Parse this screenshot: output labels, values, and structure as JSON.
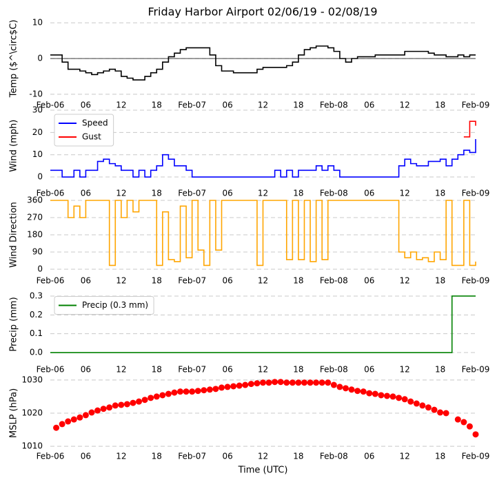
{
  "chart_data": [
    {
      "type": "line",
      "title": "Friday Harbor Airport 02/06/19 - 02/08/19",
      "y_label": "Temp ($^\\circ$C)",
      "step": true,
      "hline": 0,
      "xlim": [
        0,
        72
      ],
      "ylim": [
        -11,
        11
      ],
      "yticks": [
        -10,
        0,
        10
      ],
      "grid": true,
      "xticks": [
        {
          "value": 0,
          "label": "Feb-06"
        },
        {
          "value": 6,
          "label": "06"
        },
        {
          "value": 12,
          "label": "12"
        },
        {
          "value": 18,
          "label": "18"
        },
        {
          "value": 24,
          "label": "Feb-07"
        },
        {
          "value": 30,
          "label": "06"
        },
        {
          "value": 36,
          "label": "12"
        },
        {
          "value": 42,
          "label": "18"
        },
        {
          "value": 48,
          "label": "Feb-08"
        },
        {
          "value": 54,
          "label": "06"
        },
        {
          "value": 60,
          "label": "12"
        },
        {
          "value": 66,
          "label": "18"
        },
        {
          "value": 72,
          "label": "Feb-09"
        }
      ],
      "x": [
        0,
        1,
        2,
        3,
        4,
        5,
        6,
        7,
        8,
        9,
        10,
        11,
        12,
        13,
        14,
        15,
        16,
        17,
        18,
        19,
        20,
        21,
        22,
        23,
        24,
        25,
        26,
        27,
        28,
        29,
        30,
        31,
        32,
        33,
        34,
        35,
        36,
        37,
        38,
        39,
        40,
        41,
        42,
        43,
        44,
        45,
        46,
        47,
        48,
        49,
        50,
        51,
        52,
        53,
        54,
        55,
        56,
        57,
        58,
        59,
        60,
        61,
        62,
        63,
        64,
        65,
        66,
        67,
        68,
        69,
        70,
        71,
        72
      ],
      "series": [
        {
          "color": "#000000",
          "values": [
            1,
            1,
            -1,
            -3,
            -3,
            -3.5,
            -4,
            -4.5,
            -4,
            -3.5,
            -3,
            -3.5,
            -5,
            -5.5,
            -6,
            -6,
            -5,
            -4,
            -3,
            -1,
            0.5,
            1.5,
            2.5,
            3,
            3,
            3,
            3,
            1,
            -2,
            -3.5,
            -3.5,
            -4,
            -4,
            -4,
            -4,
            -3,
            -2.5,
            -2.5,
            -2.5,
            -2.5,
            -2,
            -1,
            1,
            2.5,
            3,
            3.5,
            3.5,
            3,
            2,
            0,
            -1,
            0,
            0.5,
            0.5,
            0.5,
            1,
            1,
            1,
            1,
            1,
            2,
            2,
            2,
            2,
            1.5,
            1,
            1,
            0.5,
            0.5,
            1,
            0.5,
            1,
            1
          ]
        }
      ]
    },
    {
      "type": "line",
      "y_label": "Wind (mph)",
      "step": true,
      "legend": "upper-left",
      "xlim": [
        0,
        72
      ],
      "ylim": [
        -2,
        30
      ],
      "yticks": [
        0,
        10,
        20,
        30
      ],
      "grid": true,
      "xticks": [
        {
          "value": 0,
          "label": "Feb-06"
        },
        {
          "value": 6,
          "label": "06"
        },
        {
          "value": 12,
          "label": "12"
        },
        {
          "value": 18,
          "label": "18"
        },
        {
          "value": 24,
          "label": "Feb-07"
        },
        {
          "value": 30,
          "label": "06"
        },
        {
          "value": 36,
          "label": "12"
        },
        {
          "value": 42,
          "label": "18"
        },
        {
          "value": 48,
          "label": "Feb-08"
        },
        {
          "value": 54,
          "label": "06"
        },
        {
          "value": 60,
          "label": "12"
        },
        {
          "value": 66,
          "label": "18"
        },
        {
          "value": 72,
          "label": "Feb-09"
        }
      ],
      "x": [
        0,
        1,
        2,
        3,
        4,
        5,
        6,
        7,
        8,
        9,
        10,
        11,
        12,
        13,
        14,
        15,
        16,
        17,
        18,
        19,
        20,
        21,
        22,
        23,
        24,
        25,
        26,
        27,
        28,
        29,
        30,
        31,
        32,
        33,
        34,
        35,
        36,
        37,
        38,
        39,
        40,
        41,
        42,
        43,
        44,
        45,
        46,
        47,
        48,
        49,
        50,
        51,
        52,
        53,
        54,
        55,
        56,
        57,
        58,
        59,
        60,
        61,
        62,
        63,
        64,
        65,
        66,
        67,
        68,
        69,
        70,
        71,
        72
      ],
      "series": [
        {
          "name": "Speed",
          "color": "#0000ff",
          "values": [
            3,
            3,
            0,
            0,
            3,
            0,
            3,
            3,
            7,
            8,
            6,
            5,
            3,
            3,
            0,
            3,
            0,
            3,
            5,
            10,
            8,
            5,
            5,
            3,
            0,
            0,
            0,
            0,
            0,
            0,
            0,
            0,
            0,
            0,
            0,
            0,
            0,
            0,
            3,
            0,
            3,
            0,
            3,
            3,
            3,
            5,
            3,
            5,
            3,
            0,
            0,
            0,
            0,
            0,
            0,
            0,
            0,
            0,
            0,
            5,
            8,
            6,
            5,
            5,
            7,
            7,
            8,
            5,
            8,
            10,
            12,
            11,
            17
          ]
        },
        {
          "name": "Gust",
          "color": "#ff0000",
          "values": [
            null,
            null,
            null,
            null,
            null,
            null,
            null,
            null,
            null,
            null,
            null,
            null,
            null,
            null,
            null,
            null,
            null,
            null,
            null,
            null,
            null,
            null,
            null,
            null,
            null,
            null,
            null,
            null,
            null,
            null,
            null,
            null,
            null,
            null,
            null,
            null,
            null,
            null,
            null,
            null,
            null,
            null,
            null,
            null,
            null,
            null,
            null,
            null,
            null,
            null,
            null,
            null,
            null,
            null,
            null,
            null,
            null,
            null,
            null,
            null,
            null,
            null,
            null,
            null,
            null,
            null,
            null,
            null,
            null,
            null,
            18,
            25,
            23
          ]
        }
      ]
    },
    {
      "type": "line",
      "y_label": "Wind Direction",
      "step": true,
      "xlim": [
        0,
        72
      ],
      "ylim": [
        0,
        360
      ],
      "yticks": [
        0,
        90,
        180,
        270,
        360
      ],
      "grid": true,
      "xticks": [
        {
          "value": 0,
          "label": "Feb-06"
        },
        {
          "value": 6,
          "label": "06"
        },
        {
          "value": 12,
          "label": "12"
        },
        {
          "value": 18,
          "label": "18"
        },
        {
          "value": 24,
          "label": "Feb-07"
        },
        {
          "value": 30,
          "label": "06"
        },
        {
          "value": 36,
          "label": "12"
        },
        {
          "value": 42,
          "label": "18"
        },
        {
          "value": 48,
          "label": "Feb-08"
        },
        {
          "value": 54,
          "label": "06"
        },
        {
          "value": 60,
          "label": "12"
        },
        {
          "value": 66,
          "label": "18"
        },
        {
          "value": 72,
          "label": "Feb-09"
        }
      ],
      "x": [
        0,
        1,
        2,
        3,
        4,
        5,
        6,
        7,
        8,
        9,
        10,
        11,
        12,
        13,
        14,
        15,
        16,
        17,
        18,
        19,
        20,
        21,
        22,
        23,
        24,
        25,
        26,
        27,
        28,
        29,
        30,
        31,
        32,
        33,
        34,
        35,
        36,
        37,
        38,
        39,
        40,
        41,
        42,
        43,
        44,
        45,
        46,
        47,
        48,
        49,
        50,
        51,
        52,
        53,
        54,
        55,
        56,
        57,
        58,
        59,
        60,
        61,
        62,
        63,
        64,
        65,
        66,
        67,
        68,
        69,
        70,
        71,
        72
      ],
      "series": [
        {
          "color": "#ffa500",
          "values": [
            360,
            360,
            360,
            270,
            330,
            270,
            360,
            360,
            360,
            360,
            20,
            360,
            270,
            360,
            300,
            360,
            360,
            360,
            20,
            300,
            50,
            40,
            330,
            60,
            360,
            100,
            20,
            360,
            100,
            360,
            360,
            360,
            360,
            360,
            360,
            20,
            360,
            360,
            360,
            360,
            50,
            360,
            50,
            360,
            40,
            360,
            50,
            360,
            360,
            360,
            360,
            360,
            360,
            360,
            360,
            360,
            360,
            360,
            360,
            90,
            60,
            90,
            50,
            60,
            40,
            90,
            50,
            360,
            20,
            20,
            360,
            20,
            40
          ]
        }
      ]
    },
    {
      "type": "line",
      "y_label": "Precip (mm)",
      "step": true,
      "legend": "upper-left",
      "xlim": [
        0,
        72
      ],
      "ylim": [
        -0.02,
        0.32
      ],
      "yticks": [
        {
          "value": 0,
          "label": "0.0"
        },
        0.1,
        0.2,
        0.3
      ],
      "grid": true,
      "xticks": [
        {
          "value": 0,
          "label": "Feb-06"
        },
        {
          "value": 6,
          "label": "06"
        },
        {
          "value": 12,
          "label": "12"
        },
        {
          "value": 18,
          "label": "18"
        },
        {
          "value": 24,
          "label": "Feb-07"
        },
        {
          "value": 30,
          "label": "06"
        },
        {
          "value": 36,
          "label": "12"
        },
        {
          "value": 42,
          "label": "18"
        },
        {
          "value": 48,
          "label": "Feb-08"
        },
        {
          "value": 54,
          "label": "06"
        },
        {
          "value": 60,
          "label": "12"
        },
        {
          "value": 66,
          "label": "18"
        },
        {
          "value": 72,
          "label": "Feb-09"
        }
      ],
      "x": [
        0,
        1,
        2,
        3,
        4,
        5,
        6,
        7,
        8,
        9,
        10,
        11,
        12,
        13,
        14,
        15,
        16,
        17,
        18,
        19,
        20,
        21,
        22,
        23,
        24,
        25,
        26,
        27,
        28,
        29,
        30,
        31,
        32,
        33,
        34,
        35,
        36,
        37,
        38,
        39,
        40,
        41,
        42,
        43,
        44,
        45,
        46,
        47,
        48,
        49,
        50,
        51,
        52,
        53,
        54,
        55,
        56,
        57,
        58,
        59,
        60,
        61,
        62,
        63,
        64,
        65,
        66,
        67,
        68,
        69,
        70,
        71,
        72
      ],
      "series": [
        {
          "name": "Precip (0.3 mm)",
          "color": "#008000",
          "values": [
            0,
            0,
            0,
            0,
            0,
            0,
            0,
            0,
            0,
            0,
            0,
            0,
            0,
            0,
            0,
            0,
            0,
            0,
            0,
            0,
            0,
            0,
            0,
            0,
            0,
            0,
            0,
            0,
            0,
            0,
            0,
            0,
            0,
            0,
            0,
            0,
            0,
            0,
            0,
            0,
            0,
            0,
            0,
            0,
            0,
            0,
            0,
            0,
            0,
            0,
            0,
            0,
            0,
            0,
            0,
            0,
            0,
            0,
            0,
            0,
            0,
            0,
            0,
            0,
            0,
            0,
            0,
            0,
            0.3,
            0.3,
            0.3,
            0.3,
            0.3
          ]
        }
      ]
    },
    {
      "type": "scatter",
      "y_label": "MSLP (hPa)",
      "x_label": "Time (UTC)",
      "xlim": [
        0,
        72
      ],
      "ylim": [
        1009,
        1031
      ],
      "yticks": [
        1010,
        1020,
        1030
      ],
      "grid": true,
      "xticks": [
        {
          "value": 0,
          "label": "Feb-06"
        },
        {
          "value": 6,
          "label": "06"
        },
        {
          "value": 12,
          "label": "12"
        },
        {
          "value": 18,
          "label": "18"
        },
        {
          "value": 24,
          "label": "Feb-07"
        },
        {
          "value": 30,
          "label": "06"
        },
        {
          "value": 36,
          "label": "12"
        },
        {
          "value": 42,
          "label": "18"
        },
        {
          "value": 48,
          "label": "Feb-08"
        },
        {
          "value": 54,
          "label": "06"
        },
        {
          "value": 60,
          "label": "12"
        },
        {
          "value": 66,
          "label": "18"
        },
        {
          "value": 72,
          "label": "Feb-09"
        }
      ],
      "x": [
        1,
        2,
        3,
        4,
        5,
        6,
        7,
        8,
        9,
        10,
        11,
        12,
        13,
        14,
        15,
        16,
        17,
        18,
        19,
        20,
        21,
        22,
        23,
        24,
        25,
        26,
        27,
        28,
        29,
        30,
        31,
        32,
        33,
        34,
        35,
        36,
        37,
        38,
        39,
        40,
        41,
        42,
        43,
        44,
        45,
        46,
        47,
        48,
        49,
        50,
        51,
        52,
        53,
        54,
        55,
        56,
        57,
        58,
        59,
        60,
        61,
        62,
        63,
        64,
        65,
        66,
        67,
        68,
        69,
        70,
        71,
        72
      ],
      "series": [
        {
          "color": "#ff0000",
          "values": [
            1015.6,
            1016.7,
            1017.5,
            1018.1,
            1018.7,
            1019.4,
            1020.2,
            1020.8,
            1021.3,
            1021.7,
            1022.3,
            1022.5,
            1022.7,
            1023.1,
            1023.5,
            1024,
            1024.6,
            1025,
            1025.4,
            1025.8,
            1026.2,
            1026.5,
            1026.5,
            1026.5,
            1026.7,
            1026.9,
            1027.1,
            1027.3,
            1027.7,
            1027.9,
            1028.1,
            1028.3,
            1028.5,
            1028.8,
            1029,
            1029.2,
            1029.2,
            1029.4,
            1029.4,
            1029.2,
            1029.2,
            1029.2,
            1029.2,
            1029.2,
            1029.2,
            1029.2,
            1029.2,
            1028.5,
            1027.9,
            1027.5,
            1027.1,
            1026.7,
            1026.5,
            1026,
            1025.8,
            1025.4,
            1025.2,
            1025,
            1024.6,
            1024.2,
            1023.5,
            1022.9,
            1022.3,
            1021.7,
            1021,
            1020.2,
            1020,
            null,
            1018.1,
            1017.3,
            1016,
            1013.6
          ]
        }
      ]
    }
  ]
}
